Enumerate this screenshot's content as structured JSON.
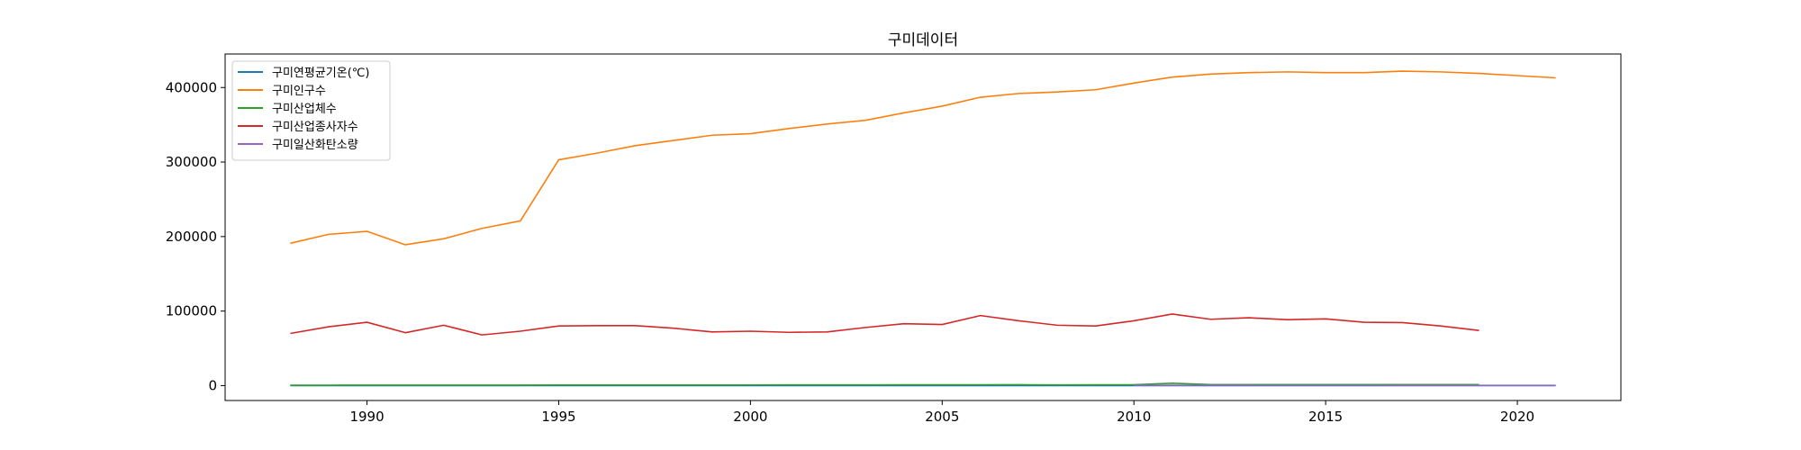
{
  "chart_data": {
    "type": "line",
    "title": "구미데이터",
    "xlabel": "",
    "ylabel": "",
    "xlim": [
      1986.3,
      2022.7
    ],
    "ylim": [
      -20000,
      445000
    ],
    "xticks": [
      1990,
      1995,
      2000,
      2005,
      2010,
      2015,
      2020
    ],
    "yticks": [
      0,
      100000,
      200000,
      300000,
      400000
    ],
    "grid": false,
    "legend_position": "upper left",
    "series": [
      {
        "name": "구미연평균기온(℃)",
        "color": "#1f77b4",
        "x": [
          1988,
          1989,
          1990,
          1991,
          1992,
          1993,
          1994,
          1995,
          1996,
          1997,
          1998,
          1999,
          2000,
          2001,
          2002,
          2003,
          2004,
          2005,
          2006,
          2007,
          2008,
          2009,
          2010,
          2011,
          2012,
          2013,
          2014,
          2015,
          2016,
          2017,
          2018,
          2019,
          2020,
          2021
        ],
        "values": [
          12.8,
          12.5,
          13.2,
          12.6,
          12.4,
          12.1,
          13.6,
          12.9,
          12.5,
          13.0,
          14.2,
          13.3,
          12.8,
          13.1,
          13.2,
          12.9,
          13.6,
          12.6,
          13.4,
          13.7,
          13.5,
          13.6,
          13.1,
          12.8,
          12.8,
          13.7,
          13.6,
          13.8,
          14.1,
          13.4,
          13.4,
          14.1,
          13.8,
          14.2
        ]
      },
      {
        "name": "구미인구수",
        "color": "#ff7f0e",
        "x": [
          1988,
          1989,
          1990,
          1991,
          1992,
          1993,
          1994,
          1995,
          1996,
          1997,
          1998,
          1999,
          2000,
          2001,
          2002,
          2003,
          2004,
          2005,
          2006,
          2007,
          2008,
          2009,
          2010,
          2011,
          2012,
          2013,
          2014,
          2015,
          2016,
          2017,
          2018,
          2019,
          2020,
          2021
        ],
        "values": [
          191000,
          203000,
          207000,
          189000,
          197000,
          211000,
          221000,
          303000,
          312000,
          322000,
          329000,
          336000,
          338000,
          345000,
          351000,
          356000,
          366000,
          375000,
          387000,
          392000,
          394000,
          397000,
          406000,
          414000,
          418000,
          420000,
          421000,
          420000,
          420000,
          422000,
          421000,
          419000,
          416000,
          413000
        ]
      },
      {
        "name": "구미산업체수",
        "color": "#2ca02c",
        "x": [
          1988,
          1989,
          1990,
          1991,
          1992,
          1993,
          1994,
          1995,
          1996,
          1997,
          1998,
          1999,
          2000,
          2001,
          2002,
          2003,
          2004,
          2005,
          2006,
          2007,
          2008,
          2009,
          2010,
          2011,
          2012,
          2013,
          2014,
          2015,
          2016,
          2017,
          2018,
          2019
        ],
        "values": [
          500,
          550,
          600,
          560,
          580,
          560,
          600,
          700,
          720,
          730,
          760,
          800,
          850,
          880,
          900,
          950,
          1000,
          1050,
          1150,
          1200,
          900,
          1000,
          1200,
          3200,
          1300,
          1300,
          1300,
          1300,
          1300,
          1300,
          1300,
          1300
        ]
      },
      {
        "name": "구미산업종사자수",
        "color": "#d62728",
        "x": [
          1988,
          1989,
          1990,
          1991,
          1992,
          1993,
          1994,
          1995,
          1996,
          1997,
          1998,
          1999,
          2000,
          2001,
          2002,
          2003,
          2004,
          2005,
          2006,
          2007,
          2008,
          2009,
          2010,
          2011,
          2012,
          2013,
          2014,
          2015,
          2016,
          2017,
          2018,
          2019
        ],
        "values": [
          70000,
          79000,
          85000,
          71000,
          81000,
          68000,
          73000,
          80000,
          80500,
          80500,
          77000,
          72000,
          73000,
          71500,
          72000,
          78000,
          83000,
          82000,
          94000,
          87000,
          81000,
          80000,
          87000,
          96000,
          89000,
          91000,
          88500,
          89500,
          85000,
          84500,
          80000,
          74000
        ]
      },
      {
        "name": "구미일산화탄소량",
        "color": "#9467bd",
        "x": [
          2010,
          2011,
          2012,
          2013,
          2014,
          2015,
          2016,
          2017,
          2018,
          2019,
          2020,
          2021
        ],
        "values": [
          400,
          400,
          420,
          400,
          380,
          380,
          370,
          360,
          350,
          330,
          320,
          310
        ]
      }
    ]
  }
}
